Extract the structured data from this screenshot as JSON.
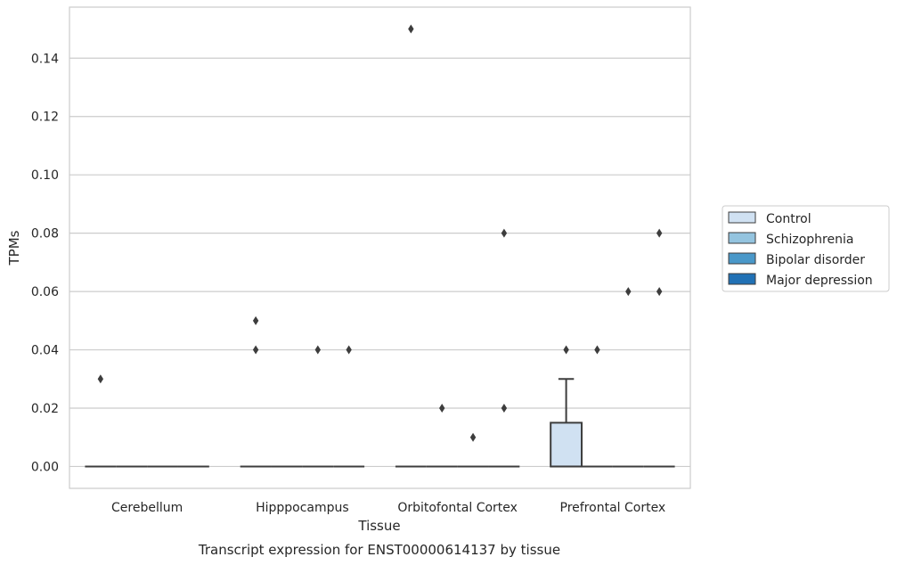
{
  "chart_data": {
    "type": "box",
    "title": "",
    "caption": "Transcript expression for ENST00000614137 by tissue",
    "xlabel": "Tissue",
    "ylabel": "TPMs",
    "ylim": [
      -0.0075,
      0.1575
    ],
    "yticks": [
      "0.00",
      "0.02",
      "0.04",
      "0.06",
      "0.08",
      "0.10",
      "0.12",
      "0.14"
    ],
    "grid": "horizontal",
    "legend_position": "right",
    "categories": [
      "Cerebellum",
      "Hipppocampus",
      "Orbitofontal Cortex",
      "Prefrontal Cortex"
    ],
    "series": [
      {
        "name": "Control",
        "color": "#d0e1f2",
        "boxes": [
          {
            "q1": 0,
            "median": 0,
            "q3": 0,
            "whisker_low": 0,
            "whisker_high": 0,
            "outliers": [
              0.03
            ]
          },
          {
            "q1": 0,
            "median": 0,
            "q3": 0,
            "whisker_low": 0,
            "whisker_high": 0,
            "outliers": [
              0.04,
              0.05
            ]
          },
          {
            "q1": 0,
            "median": 0,
            "q3": 0,
            "whisker_low": 0,
            "whisker_high": 0,
            "outliers": [
              0.15
            ]
          },
          {
            "q1": 0,
            "median": 0,
            "q3": 0.015,
            "whisker_low": 0,
            "whisker_high": 0.03,
            "outliers": [
              0.04
            ]
          }
        ]
      },
      {
        "name": "Schizophrenia",
        "color": "#94c4df",
        "boxes": [
          {
            "q1": 0,
            "median": 0,
            "q3": 0,
            "whisker_low": 0,
            "whisker_high": 0,
            "outliers": []
          },
          {
            "q1": 0,
            "median": 0,
            "q3": 0,
            "whisker_low": 0,
            "whisker_high": 0,
            "outliers": []
          },
          {
            "q1": 0,
            "median": 0,
            "q3": 0,
            "whisker_low": 0,
            "whisker_high": 0,
            "outliers": [
              0.02
            ]
          },
          {
            "q1": 0,
            "median": 0,
            "q3": 0,
            "whisker_low": 0,
            "whisker_high": 0,
            "outliers": [
              0.04
            ]
          }
        ]
      },
      {
        "name": "Bipolar disorder",
        "color": "#4a98c9",
        "boxes": [
          {
            "q1": 0,
            "median": 0,
            "q3": 0,
            "whisker_low": 0,
            "whisker_high": 0,
            "outliers": []
          },
          {
            "q1": 0,
            "median": 0,
            "q3": 0,
            "whisker_low": 0,
            "whisker_high": 0,
            "outliers": [
              0.04
            ]
          },
          {
            "q1": 0,
            "median": 0,
            "q3": 0,
            "whisker_low": 0,
            "whisker_high": 0,
            "outliers": [
              0.01
            ]
          },
          {
            "q1": 0,
            "median": 0,
            "q3": 0,
            "whisker_low": 0,
            "whisker_high": 0,
            "outliers": [
              0.06
            ]
          }
        ]
      },
      {
        "name": "Major depression",
        "color": "#2171b5",
        "boxes": [
          {
            "q1": 0,
            "median": 0,
            "q3": 0,
            "whisker_low": 0,
            "whisker_high": 0,
            "outliers": []
          },
          {
            "q1": 0,
            "median": 0,
            "q3": 0,
            "whisker_low": 0,
            "whisker_high": 0,
            "outliers": [
              0.04
            ]
          },
          {
            "q1": 0,
            "median": 0,
            "q3": 0,
            "whisker_low": 0,
            "whisker_high": 0,
            "outliers": [
              0.02,
              0.08
            ]
          },
          {
            "q1": 0,
            "median": 0,
            "q3": 0,
            "whisker_low": 0,
            "whisker_high": 0,
            "outliers": [
              0.06,
              0.08
            ]
          }
        ]
      }
    ]
  }
}
